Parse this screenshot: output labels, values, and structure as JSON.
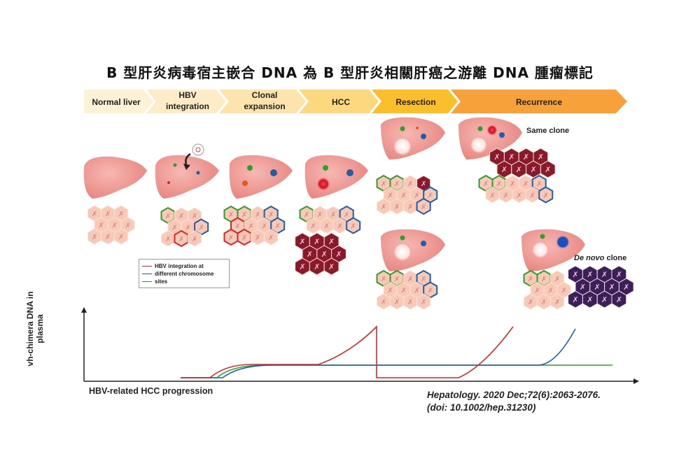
{
  "title": "B 型肝炎病毒宿主嵌合 DNA 為 B 型肝炎相關肝癌之游離 DNA 腫瘤標記",
  "stages": [
    {
      "line1": "Normal liver",
      "line2": ""
    },
    {
      "line1": "HBV",
      "line2": "integration"
    },
    {
      "line1": "Clonal",
      "line2": "expansion"
    },
    {
      "line1": "HCC",
      "line2": ""
    },
    {
      "line1": "Resection",
      "line2": ""
    },
    {
      "line1": "Recurrence",
      "line2": ""
    }
  ],
  "clones": {
    "same": "Same clone",
    "denovo_italic": "De novo",
    "denovo_rest": " clone"
  },
  "legend": {
    "items": [
      {
        "label": "HBV integration at",
        "color": "#d62728"
      },
      {
        "label": "different chromosome",
        "color": "#1f5fa8"
      },
      {
        "label": "sites",
        "color": "#2ca02c"
      }
    ]
  },
  "chart_data": {
    "type": "line",
    "ylabel": "vh-chimera DNA in plasma",
    "xlabel": "HBV-related HCC progression",
    "series": [
      {
        "name": "red",
        "color": "#d62728"
      },
      {
        "name": "blue",
        "color": "#1f5fa8"
      },
      {
        "name": "green",
        "color": "#2ca02c"
      }
    ]
  },
  "citation": {
    "line1": "Hepatology. 2020 Dec;72(6):2063-2076.",
    "line2": "(doi: 10.1002/hep.31230)"
  },
  "colors": {
    "liver": "#f29c98",
    "cell": "#f7c9b6",
    "tumor": "#8a1a2b",
    "denovo": "#3a1f5c"
  }
}
